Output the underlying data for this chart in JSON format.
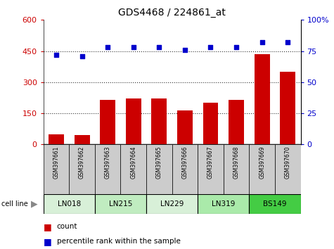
{
  "title": "GDS4468 / 224861_at",
  "samples": [
    "GSM397661",
    "GSM397662",
    "GSM397663",
    "GSM397664",
    "GSM397665",
    "GSM397666",
    "GSM397667",
    "GSM397668",
    "GSM397669",
    "GSM397670"
  ],
  "counts": [
    50,
    45,
    215,
    220,
    220,
    165,
    200,
    215,
    435,
    350
  ],
  "percentile_ranks": [
    72,
    71,
    78,
    78,
    78,
    76,
    78,
    78,
    82,
    82
  ],
  "cell_lines": [
    {
      "label": "LN018",
      "start": 0,
      "end": 2,
      "color": "#d8f0d8"
    },
    {
      "label": "LN215",
      "start": 2,
      "end": 4,
      "color": "#c0ecc0"
    },
    {
      "label": "LN229",
      "start": 4,
      "end": 6,
      "color": "#d8f0d8"
    },
    {
      "label": "LN319",
      "start": 6,
      "end": 8,
      "color": "#aaeaaa"
    },
    {
      "label": "BS149",
      "start": 8,
      "end": 10,
      "color": "#44cc44"
    }
  ],
  "left_ylim": [
    0,
    600
  ],
  "right_ylim": [
    0,
    100
  ],
  "left_yticks": [
    0,
    150,
    300,
    450,
    600
  ],
  "right_yticks": [
    0,
    25,
    50,
    75,
    100
  ],
  "right_yticklabels": [
    "0",
    "25",
    "50",
    "75",
    "100%"
  ],
  "bar_color": "#cc0000",
  "scatter_color": "#0000cc",
  "bg_color": "#ffffff",
  "plot_bg": "#ffffff",
  "sample_box_color": "#cccccc",
  "gridline_color": "#333333",
  "legend_count": "count",
  "legend_pct": "percentile rank within the sample"
}
